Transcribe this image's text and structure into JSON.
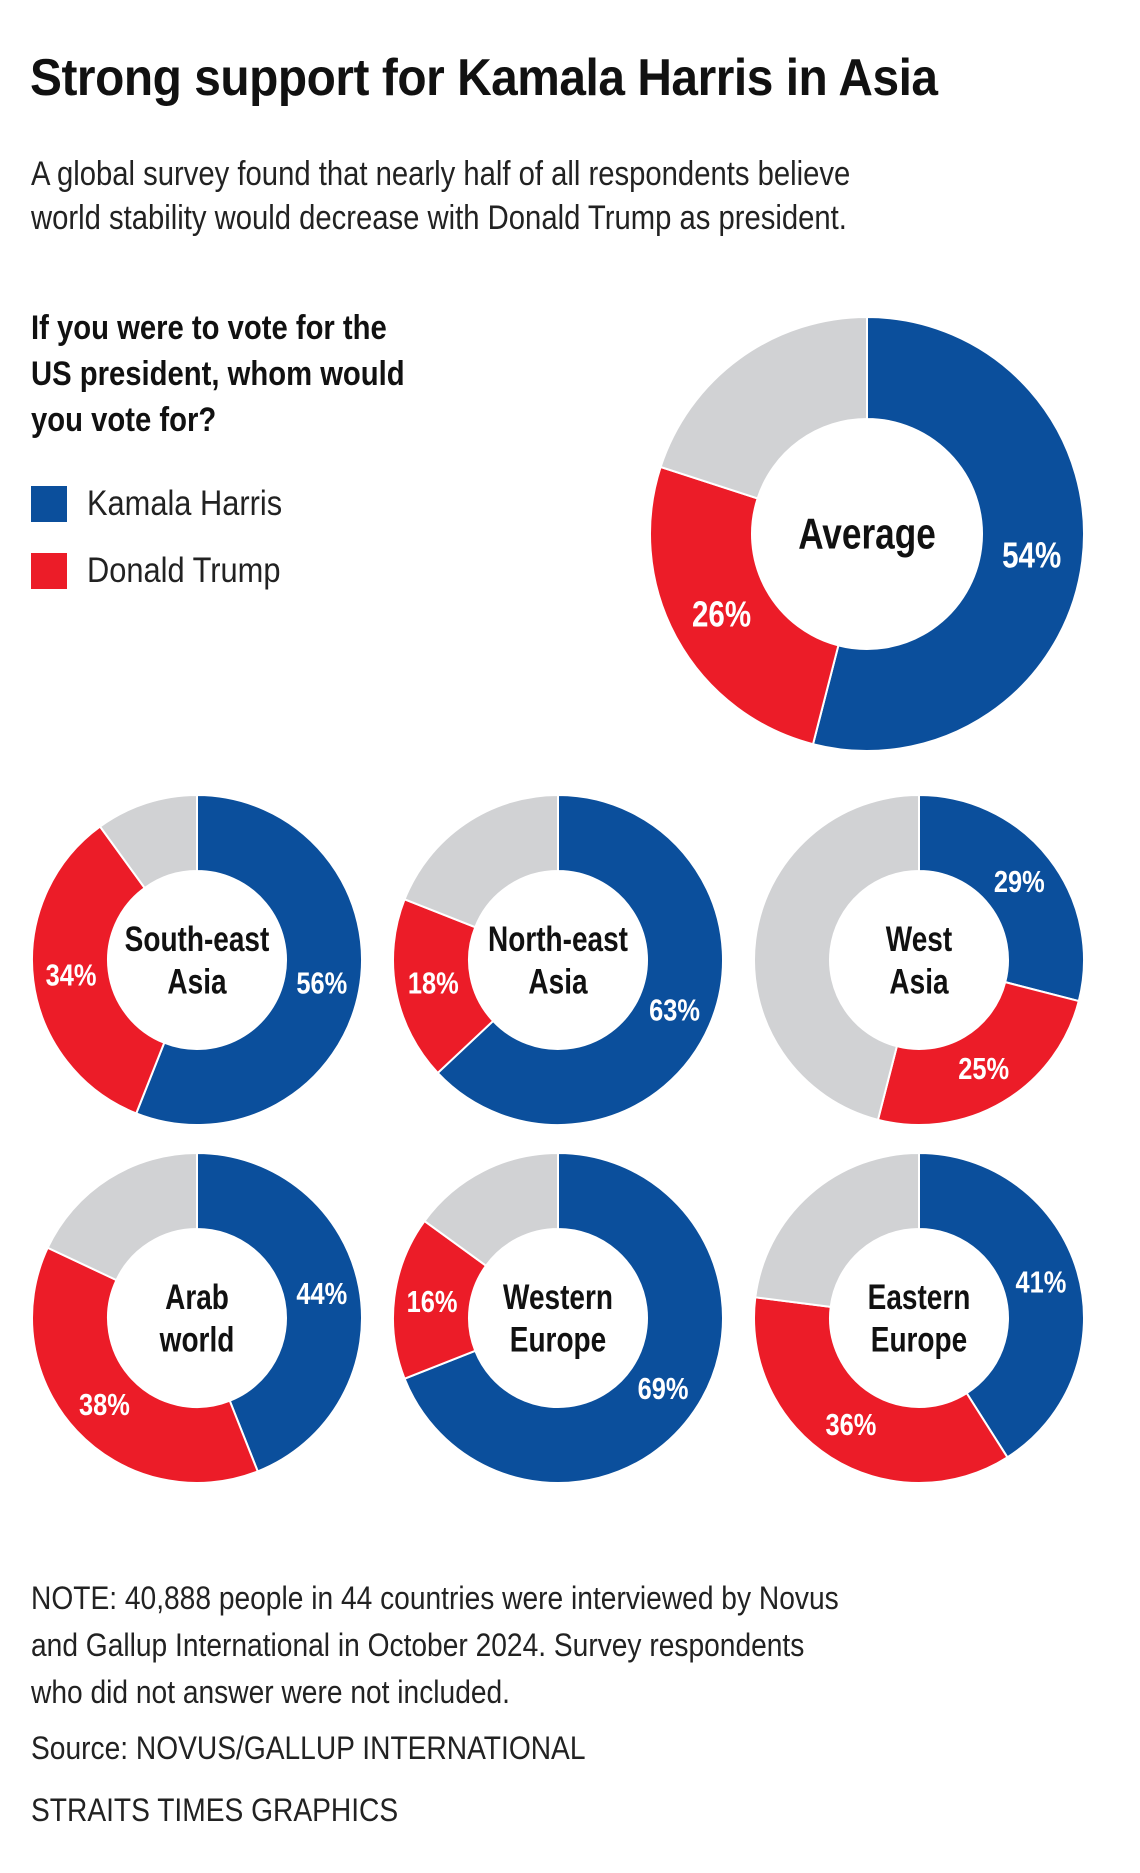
{
  "title": "Strong support for Kamala Harris in Asia",
  "subtitle": [
    "A global survey found that nearly half of all respondents believe",
    "world stability would decrease with Donald Trump as president."
  ],
  "question": [
    "If you were to vote for the",
    "US president, whom would",
    "you vote for?"
  ],
  "legend": [
    {
      "label": "Kamala Harris",
      "color": "#0B4F9C"
    },
    {
      "label": "Donald Trump",
      "color": "#EC1C28"
    }
  ],
  "colors": {
    "harris": "#0B4F9C",
    "trump": "#EC1C28",
    "other": "#D1D2D4"
  },
  "chart_data": {
    "type": "pie",
    "title": "If you were to vote for the US president, whom would you vote for?",
    "series_names": [
      "Kamala Harris",
      "Donald Trump"
    ],
    "remainder_label": "Other / no answer (unlabelled grey)",
    "units": "percent",
    "regions": [
      {
        "name": "Average",
        "label_lines": [
          "Average"
        ],
        "harris": 54,
        "trump": 26
      },
      {
        "name": "South-east Asia",
        "label_lines": [
          "South-east",
          "Asia"
        ],
        "harris": 56,
        "trump": 34
      },
      {
        "name": "North-east Asia",
        "label_lines": [
          "North-east",
          "Asia"
        ],
        "harris": 63,
        "trump": 18
      },
      {
        "name": "West Asia",
        "label_lines": [
          "West",
          "Asia"
        ],
        "harris": 29,
        "trump": 25
      },
      {
        "name": "Arab world",
        "label_lines": [
          "Arab",
          "world"
        ],
        "harris": 44,
        "trump": 38
      },
      {
        "name": "Western Europe",
        "label_lines": [
          "Western",
          "Europe"
        ],
        "harris": 69,
        "trump": 16
      },
      {
        "name": "Eastern Europe",
        "label_lines": [
          "Eastern",
          "Europe"
        ],
        "harris": 41,
        "trump": 36
      }
    ]
  },
  "footer": {
    "note": [
      "NOTE: 40,888 people in 44 countries were interviewed by Novus",
      "and Gallup International in October 2024. Survey respondents",
      "who did not answer were not included."
    ],
    "source": "Source: NOVUS/GALLUP INTERNATIONAL",
    "credit": "STRAITS TIMES GRAPHICS"
  }
}
